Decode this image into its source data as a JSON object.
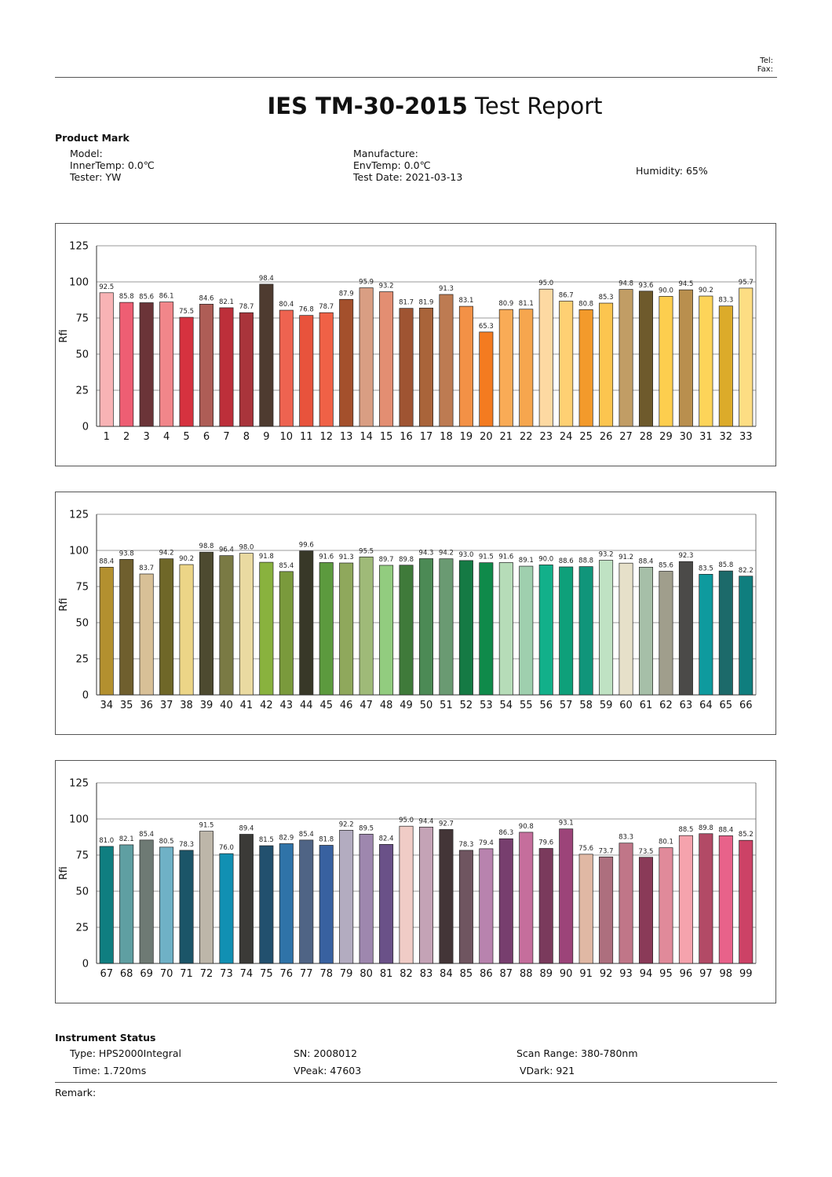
{
  "header": {
    "tel_label": "Tel:",
    "fax_label": "Fax:"
  },
  "title": {
    "bold": "IES TM-30-2015",
    "rest": " Test Report"
  },
  "product": {
    "heading": "Product Mark",
    "model": "Model:",
    "inner_temp": "InnerTemp: 0.0℃",
    "tester": "Tester: YW",
    "manufacture": "Manufacture:",
    "env_temp": "EnvTemp: 0.0℃",
    "test_date": "Test Date: 2021-03-13",
    "humidity": "Humidity: 65%"
  },
  "instrument": {
    "heading": "Instrument Status",
    "type": "Type: HPS2000Integral",
    "time": "Time: 1.720ms",
    "sn": "SN: 2008012",
    "vpeak": "VPeak: 47603",
    "scan_range": "Scan Range: 380-780nm",
    "vdark": "VDark: 921"
  },
  "remark": "Remark:",
  "chart_data": [
    {
      "type": "bar",
      "ylabel": "Rfi",
      "ylim": [
        0,
        125
      ],
      "yticks": [
        0,
        25,
        50,
        75,
        100,
        125
      ],
      "grid": true,
      "categories": [
        "1",
        "2",
        "3",
        "4",
        "5",
        "6",
        "7",
        "8",
        "9",
        "10",
        "11",
        "12",
        "13",
        "14",
        "15",
        "16",
        "17",
        "18",
        "19",
        "20",
        "21",
        "22",
        "23",
        "24",
        "25",
        "26",
        "27",
        "28",
        "29",
        "30",
        "31",
        "32",
        "33"
      ],
      "values": [
        92.5,
        85.8,
        85.6,
        86.1,
        75.5,
        84.6,
        82.1,
        78.7,
        98.4,
        80.4,
        76.8,
        78.7,
        87.9,
        95.9,
        93.2,
        81.7,
        81.9,
        91.3,
        83.1,
        65.3,
        80.9,
        81.1,
        95.0,
        86.7,
        80.8,
        85.3,
        94.8,
        93.6,
        90.0,
        94.5,
        90.2,
        83.3,
        95.7
      ],
      "colors": [
        "#f8b3b5",
        "#ee5e73",
        "#6b3438",
        "#f1868a",
        "#d6323f",
        "#ae5d56",
        "#bd2f3a",
        "#a9343b",
        "#4e3b30",
        "#ee6350",
        "#e8533c",
        "#f06146",
        "#a4502c",
        "#d99e83",
        "#e38e72",
        "#9f5432",
        "#a9643a",
        "#bd7b52",
        "#f39146",
        "#f47b20",
        "#f9ab56",
        "#f6a64e",
        "#fdd9a2",
        "#fed073",
        "#f39a2b",
        "#fcc54f",
        "#c19d65",
        "#6e5a2c",
        "#fdce4e",
        "#b98f4e",
        "#fdd459",
        "#dcab2a",
        "#fddd83"
      ]
    },
    {
      "type": "bar",
      "ylabel": "Rfi",
      "ylim": [
        0,
        125
      ],
      "yticks": [
        0,
        25,
        50,
        75,
        100,
        125
      ],
      "grid": true,
      "categories": [
        "34",
        "35",
        "36",
        "37",
        "38",
        "39",
        "40",
        "41",
        "42",
        "43",
        "44",
        "45",
        "46",
        "47",
        "48",
        "49",
        "50",
        "51",
        "52",
        "53",
        "54",
        "55",
        "56",
        "57",
        "58",
        "59",
        "60",
        "61",
        "62",
        "63",
        "64",
        "65",
        "66"
      ],
      "values": [
        88.4,
        93.8,
        83.7,
        94.2,
        90.2,
        98.8,
        96.4,
        98.0,
        91.8,
        85.4,
        99.6,
        91.6,
        91.3,
        95.5,
        89.7,
        89.8,
        94.3,
        94.2,
        93.0,
        91.5,
        91.6,
        89.1,
        90.0,
        88.6,
        88.8,
        93.2,
        91.2,
        88.4,
        85.6,
        92.3,
        83.5,
        85.8,
        82.2
      ],
      "colors": [
        "#b3902f",
        "#6f5f2e",
        "#d8c097",
        "#6f6728",
        "#ecd587",
        "#4d4a30",
        "#7a7a44",
        "#eadaa1",
        "#89b23e",
        "#7a9a3c",
        "#383828",
        "#5c9a3e",
        "#8fa85c",
        "#9fba78",
        "#92cc7f",
        "#3f7a3a",
        "#4c8a55",
        "#6a9a72",
        "#157a44",
        "#0f8a4a",
        "#b6dcb8",
        "#9fcfae",
        "#12b08a",
        "#0ea07a",
        "#10957a",
        "#bfe2c3",
        "#e6e0c9",
        "#a6bfa8",
        "#a09e8c",
        "#4b4a48",
        "#0e9a9e",
        "#1c6a6a",
        "#0f7e7e"
      ]
    },
    {
      "type": "bar",
      "ylabel": "Rfi",
      "ylim": [
        0,
        125
      ],
      "yticks": [
        0,
        25,
        50,
        75,
        100,
        125
      ],
      "grid": true,
      "categories": [
        "67",
        "68",
        "69",
        "70",
        "71",
        "72",
        "73",
        "74",
        "75",
        "76",
        "77",
        "78",
        "79",
        "80",
        "81",
        "82",
        "83",
        "84",
        "85",
        "86",
        "87",
        "88",
        "89",
        "90",
        "91",
        "92",
        "93",
        "94",
        "95",
        "96",
        "97",
        "98",
        "99"
      ],
      "values": [
        81.0,
        82.1,
        85.4,
        80.5,
        78.3,
        91.5,
        76.0,
        89.4,
        81.5,
        82.9,
        85.4,
        81.8,
        92.2,
        89.5,
        82.4,
        95.0,
        94.4,
        92.7,
        78.3,
        79.4,
        86.3,
        90.8,
        79.6,
        93.1,
        75.6,
        73.7,
        83.3,
        73.5,
        80.1,
        88.5,
        89.8,
        88.4,
        85.2
      ],
      "colors": [
        "#0f7e80",
        "#5f9fa2",
        "#6e7a74",
        "#6fb1c6",
        "#1b5568",
        "#bdb6a9",
        "#1190b3",
        "#3b3a37",
        "#22506e",
        "#2f73a8",
        "#4f6485",
        "#3861a0",
        "#b3acc0",
        "#9e87ae",
        "#6a5188",
        "#f0ccc6",
        "#c4a3b6",
        "#433537",
        "#6f5560",
        "#b883ae",
        "#773e6e",
        "#c56e9c",
        "#7a3a5c",
        "#9c4479",
        "#e0b8a4",
        "#ad6f7e",
        "#c07688",
        "#8a3a58",
        "#e08a9a",
        "#f5a3ad",
        "#b24a66",
        "#e8628a",
        "#cc4266"
      ]
    }
  ]
}
